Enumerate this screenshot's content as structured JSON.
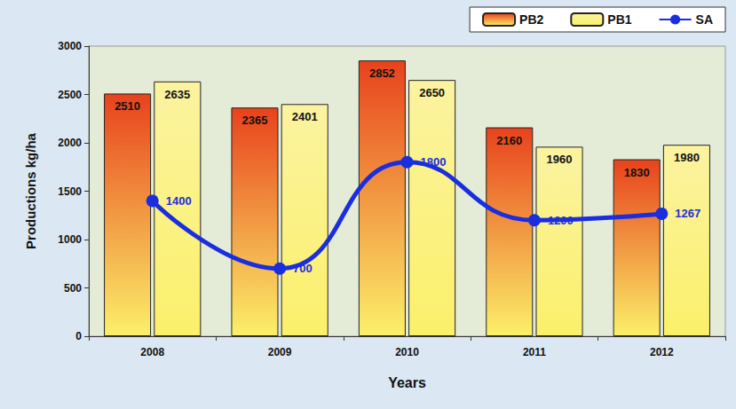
{
  "chart_data": {
    "type": "bar",
    "x_label": "Years",
    "y_label": "Productions kg/ha",
    "categories": [
      "2008",
      "2009",
      "2010",
      "2011",
      "2012"
    ],
    "series": [
      {
        "name": "PB2",
        "type": "bar",
        "color": "#e8421c",
        "values": [
          2510,
          2365,
          2852,
          2160,
          1830
        ]
      },
      {
        "name": "PB1",
        "type": "bar",
        "color": "#fbf3a0",
        "values": [
          2635,
          2401,
          2650,
          1960,
          1980
        ]
      },
      {
        "name": "SA",
        "type": "line",
        "color": "#1a2ee0",
        "marker": "circle",
        "line_style": "solid",
        "values": [
          1400,
          700,
          1800,
          1200,
          1267
        ]
      }
    ],
    "ylim": [
      0,
      3000
    ],
    "yticks": [
      0,
      500,
      1000,
      1500,
      2000,
      2500,
      3000
    ],
    "grid": false,
    "legend": "top-right",
    "data_labels": true
  }
}
